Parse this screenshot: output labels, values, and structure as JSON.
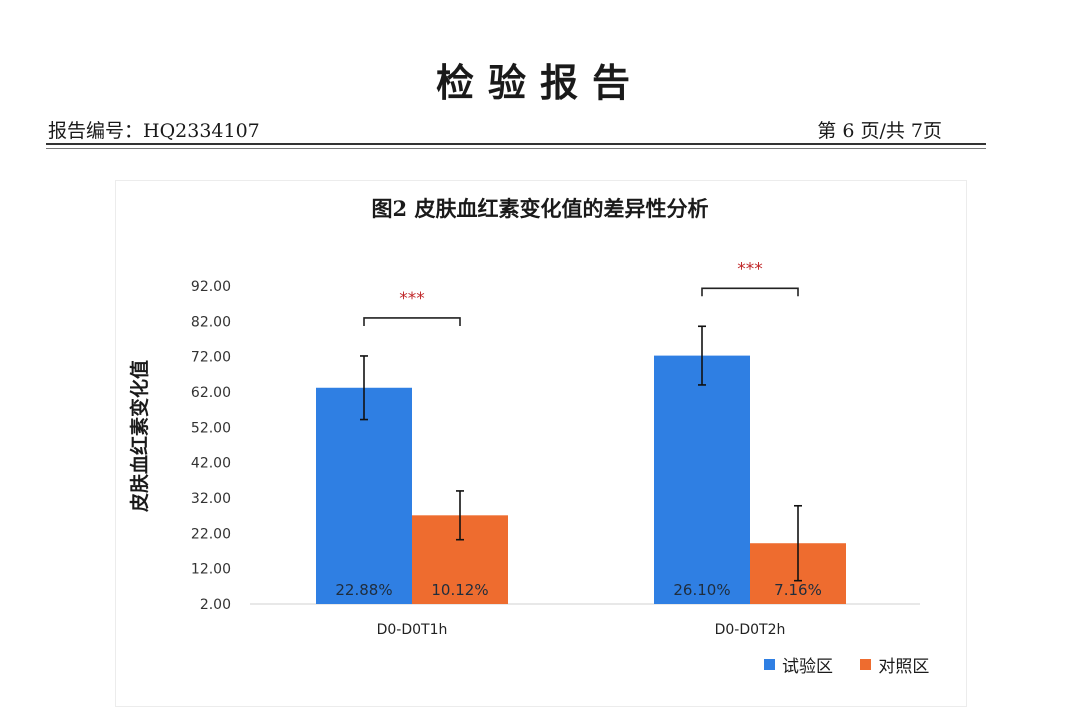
{
  "document": {
    "title": "检验报告",
    "report_number": "报告编号：HQ2334107",
    "page_info": "第 6 页/共 7页"
  },
  "colors": {
    "test": "#2f7fe3",
    "control": "#ee6c2f",
    "significance": "#c0282a"
  },
  "chart_data": {
    "type": "bar",
    "title": "图2 皮肤血红素变化值的差异性分析",
    "ylabel": "皮肤血红素变化值",
    "xlabel": "",
    "ylim": [
      2,
      92
    ],
    "yticks": [
      "92.00",
      "82.00",
      "72.00",
      "62.00",
      "52.00",
      "42.00",
      "32.00",
      "22.00",
      "12.00",
      "2.00"
    ],
    "categories": [
      "D0-D0T1h",
      "D0-D0T2h"
    ],
    "series": [
      {
        "name": "试验区",
        "values": [
          63.2,
          72.3
        ],
        "error": [
          9.0,
          8.3
        ],
        "data_labels": [
          "22.88%",
          "26.10%"
        ]
      },
      {
        "name": "对照区",
        "values": [
          27.1,
          19.2
        ],
        "error": [
          6.9,
          10.6
        ],
        "data_labels": [
          "10.12%",
          "7.16%"
        ]
      }
    ],
    "significance": [
      "***",
      "***"
    ],
    "legend_position": "bottom-right",
    "grid": false
  }
}
